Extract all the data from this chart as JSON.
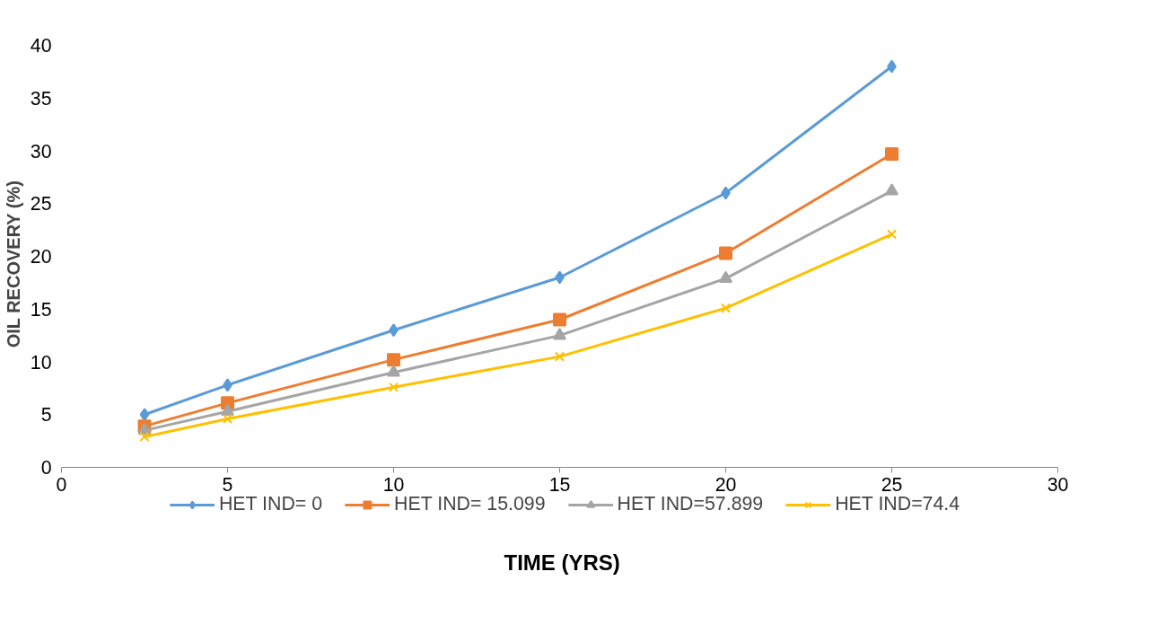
{
  "chart_data": {
    "type": "line",
    "xlabel": "TIME  (YRS)",
    "ylabel": "OIL RECOVERY    (%)",
    "x": [
      2.5,
      5,
      10,
      15,
      20,
      25
    ],
    "series": [
      {
        "name": "HET IND= 0",
        "color": "#5b9bd5",
        "marker": "diamond",
        "values": [
          5.0,
          7.8,
          13.0,
          18.0,
          26.0,
          38.0
        ]
      },
      {
        "name": "HET IND= 15.099",
        "color": "#ed7d31",
        "marker": "square",
        "values": [
          3.9,
          6.1,
          10.2,
          14.0,
          20.3,
          29.7
        ]
      },
      {
        "name": "HET IND=57.899",
        "color": "#a5a5a5",
        "marker": "triangle",
        "values": [
          3.5,
          5.3,
          9.0,
          12.5,
          17.9,
          26.2
        ]
      },
      {
        "name": "HET IND=74.4",
        "color": "#ffc000",
        "marker": "cross",
        "values": [
          2.9,
          4.6,
          7.6,
          10.5,
          15.1,
          22.1
        ]
      }
    ],
    "xlim": [
      0,
      30
    ],
    "xticks": [
      0,
      5,
      10,
      15,
      20,
      25,
      30
    ],
    "ylim": [
      0,
      40
    ],
    "yticks": [
      0,
      5,
      10,
      15,
      20,
      25,
      30,
      35,
      40
    ],
    "grid": false,
    "legend": "bottom",
    "line_style": "solid"
  }
}
